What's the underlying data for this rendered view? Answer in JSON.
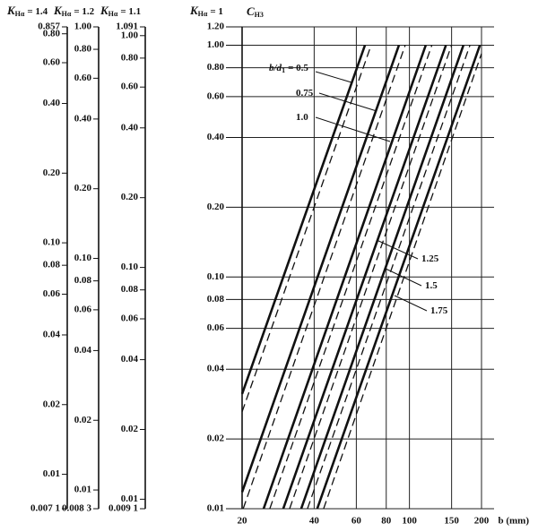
{
  "chart_data": [
    {
      "type": "scale",
      "title": "K",
      "title_sub": "Hα",
      "title_rest": "= 1.4",
      "yscale": "log",
      "ylim": [
        0.0071,
        0.857
      ],
      "yticks": [
        0.857,
        {
          "value": 0.8,
          "label": "0.80"
        },
        {
          "value": 0.6,
          "label": "0.60"
        },
        {
          "value": 0.4,
          "label": "0.40"
        },
        {
          "value": 0.2,
          "label": "0.20"
        },
        {
          "value": 0.1,
          "label": "0.10"
        },
        0.08,
        0.06,
        0.04,
        0.02,
        0.01,
        {
          "value": 0.0071,
          "label": "0.007 1"
        }
      ]
    },
    {
      "type": "scale",
      "title": "K",
      "title_sub": "Hα",
      "title_rest": "= 1.2",
      "yscale": "log",
      "ylim": [
        0.0083,
        1.0
      ],
      "yticks": [
        {
          "value": 1.0,
          "label": "1.00"
        },
        {
          "value": 0.8,
          "label": "0.80"
        },
        {
          "value": 0.6,
          "label": "0.60"
        },
        {
          "value": 0.4,
          "label": "0.40"
        },
        {
          "value": 0.2,
          "label": "0.20"
        },
        {
          "value": 0.1,
          "label": "0.10"
        },
        0.08,
        0.06,
        0.04,
        0.02,
        0.01,
        {
          "value": 0.0083,
          "label": "0.008 3"
        }
      ]
    },
    {
      "type": "scale",
      "title": "K",
      "title_sub": "Hα",
      "title_rest": "= 1.1",
      "yscale": "log",
      "ylim": [
        0.0091,
        1.091
      ],
      "yticks": [
        1.091,
        {
          "value": 1.0,
          "label": "1.00"
        },
        {
          "value": 0.8,
          "label": "0.80"
        },
        {
          "value": 0.6,
          "label": "0.60"
        },
        {
          "value": 0.4,
          "label": "0.40"
        },
        {
          "value": 0.2,
          "label": "0.20"
        },
        {
          "value": 0.1,
          "label": "0.10"
        },
        0.08,
        0.06,
        0.04,
        0.02,
        0.01,
        {
          "value": 0.0091,
          "label": "0.009 1"
        }
      ]
    },
    {
      "type": "line",
      "title": "K",
      "title_sub": "Hα",
      "title_rest": "= 1",
      "ylabel": "C",
      "ylabel_sub": "H3",
      "xlabel": "b (mm)",
      "xscale": "log",
      "yscale": "log",
      "grid": true,
      "xlim": [
        20,
        200
      ],
      "xticks": [
        20,
        40,
        60,
        80,
        100,
        150,
        200
      ],
      "ylim": [
        0.01,
        1.2
      ],
      "yticks": [
        {
          "value": 1.2,
          "label": "1.20"
        },
        {
          "value": 1.0,
          "label": "1.00"
        },
        {
          "value": 0.8,
          "label": "0.80"
        },
        {
          "value": 0.6,
          "label": "0.60"
        },
        {
          "value": 0.4,
          "label": "0.40"
        },
        {
          "value": 0.2,
          "label": "0.20"
        },
        {
          "value": 0.1,
          "label": "0.10"
        },
        0.08,
        0.06,
        0.04,
        0.02,
        0.01
      ],
      "annotation_prefix": "b/d",
      "annotation_sub": "1",
      "annotations": [
        "= 0.5",
        "0.75",
        "1.0",
        "1.25",
        "1.5",
        "1.75"
      ],
      "series": [
        {
          "color": "#111111",
          "dashed": false,
          "x": [
            20,
            65.2
          ],
          "values": [
            0.0313,
            1.0
          ]
        },
        {
          "color": "#111111",
          "dashed": true,
          "x": [
            20,
            69.2
          ],
          "values": [
            0.0262,
            1.0
          ]
        },
        {
          "color": "#111111",
          "dashed": false,
          "x": [
            20,
            90.4
          ],
          "values": [
            0.0118,
            1.0
          ]
        },
        {
          "color": "#111111",
          "dashed": true,
          "x": [
            20.2,
            96
          ],
          "values": [
            0.01,
            1.0
          ]
        },
        {
          "color": "#111111",
          "dashed": false,
          "x": [
            24.6,
            117
          ],
          "values": [
            0.01,
            1.0
          ]
        },
        {
          "color": "#111111",
          "dashed": true,
          "x": [
            26.1,
            124
          ],
          "values": [
            0.01,
            1.0
          ]
        },
        {
          "color": "#111111",
          "dashed": false,
          "x": [
            29.7,
            142
          ],
          "values": [
            0.01,
            1.0
          ]
        },
        {
          "color": "#111111",
          "dashed": true,
          "x": [
            31.6,
            150
          ],
          "values": [
            0.01,
            1.0
          ]
        },
        {
          "color": "#111111",
          "dashed": false,
          "x": [
            35.3,
            168
          ],
          "values": [
            0.01,
            1.0
          ]
        },
        {
          "color": "#111111",
          "dashed": true,
          "x": [
            37.5,
            179
          ],
          "values": [
            0.01,
            1.0
          ]
        },
        {
          "color": "#111111",
          "dashed": false,
          "x": [
            41.2,
            197
          ],
          "values": [
            0.01,
            1.0
          ]
        },
        {
          "color": "#111111",
          "dashed": true,
          "x": [
            43.8,
            200
          ],
          "values": [
            0.01,
            0.92
          ]
        }
      ]
    }
  ]
}
